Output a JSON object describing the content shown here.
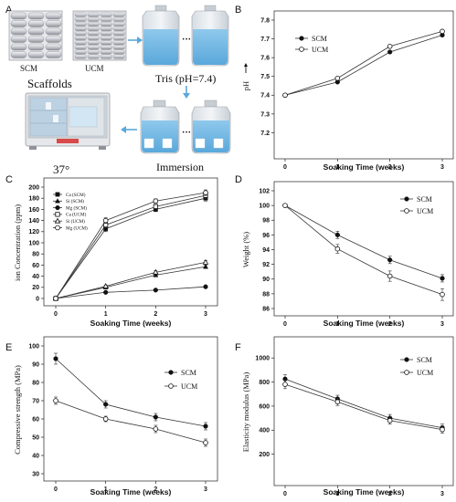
{
  "panel_a": {
    "letter": "A",
    "label_scm": "SCM",
    "label_ucm": "UCM",
    "label_scaffolds": "Scaffolds",
    "label_tris": "Tris (pH=7.4)",
    "label_immersion": "Immersion",
    "label_temp": "37°",
    "ellipsis_top": "···",
    "ellipsis_bottom": "···"
  },
  "chart_data": [
    {
      "id": "B",
      "letter": "B",
      "type": "line",
      "title": "",
      "xlabel": "Soaking Time (weeks)",
      "ylabel": "pH",
      "x": [
        0,
        1,
        2,
        3
      ],
      "xlim": [
        0,
        3
      ],
      "ylim": [
        7.1,
        7.8
      ],
      "yticks": [
        7.2,
        7.3,
        7.4,
        7.5,
        7.6,
        7.7,
        7.8
      ],
      "xticklabels": [
        "0",
        "1",
        "2",
        "3"
      ],
      "yticklabels": [
        "7.2",
        "7.3",
        "7.4",
        "7.5",
        "7.6",
        "7.7",
        "7.8"
      ],
      "legend": "top-left",
      "grid": false,
      "series": [
        {
          "name": "SCM",
          "marker": "filled-circle",
          "values": [
            7.4,
            7.47,
            7.63,
            7.72
          ],
          "errors": [
            0,
            0,
            0,
            0
          ]
        },
        {
          "name": "UCM",
          "marker": "open-circle",
          "values": [
            7.4,
            7.49,
            7.66,
            7.74
          ],
          "errors": [
            0,
            0,
            0,
            0
          ]
        }
      ]
    },
    {
      "id": "C",
      "letter": "C",
      "type": "line",
      "title": "",
      "xlabel": "Soaking Time (weeks)",
      "ylabel": "ion Concentration (ppm)",
      "x": [
        0,
        1,
        2,
        3
      ],
      "xlim": [
        0,
        3
      ],
      "ylim": [
        0,
        200
      ],
      "yticks": [
        0,
        20,
        40,
        60,
        80,
        100,
        120,
        140,
        160,
        180,
        200
      ],
      "xticklabels": [
        "0",
        "1",
        "2",
        "3"
      ],
      "yticklabels": [
        "0",
        "20",
        "40",
        "60",
        "80",
        "100",
        "120",
        "140",
        "160",
        "180",
        "200"
      ],
      "legend": "top-left",
      "grid": false,
      "series": [
        {
          "name": "Ca (SCM)",
          "marker": "filled-square",
          "values": [
            0,
            125,
            160,
            180
          ],
          "errors": [
            0,
            5,
            4,
            5
          ]
        },
        {
          "name": "Si (SCM)",
          "marker": "filled-triangle",
          "values": [
            0,
            20,
            42,
            57
          ],
          "errors": [
            0,
            2,
            3,
            3
          ]
        },
        {
          "name": "Mg (SCM)",
          "marker": "filled-circle",
          "values": [
            0,
            11,
            15,
            21
          ],
          "errors": [
            0,
            1,
            1,
            2
          ]
        },
        {
          "name": "Ca (UCM)",
          "marker": "open-square",
          "values": [
            0,
            132,
            165,
            185
          ],
          "errors": [
            0,
            5,
            4,
            5
          ]
        },
        {
          "name": "Si (UCM)",
          "marker": "open-triangle",
          "values": [
            0,
            22,
            47,
            65
          ],
          "errors": [
            0,
            2,
            3,
            3
          ]
        },
        {
          "name": "Mg (UCM)",
          "marker": "open-circle",
          "values": [
            0,
            140,
            175,
            190
          ],
          "errors": [
            0,
            5,
            4,
            5
          ]
        }
      ]
    },
    {
      "id": "D",
      "letter": "D",
      "type": "line",
      "title": "",
      "xlabel": "Soaking Time (weeks)",
      "ylabel": "Weight (%)",
      "x": [
        0,
        1,
        2,
        3
      ],
      "xlim": [
        0,
        3
      ],
      "ylim": [
        86,
        102
      ],
      "yticks": [
        86,
        88,
        90,
        92,
        94,
        96,
        98,
        100,
        102
      ],
      "xticklabels": [
        "0",
        "1",
        "2",
        "3"
      ],
      "yticklabels": [
        "86",
        "88",
        "90",
        "92",
        "94",
        "96",
        "98",
        "100",
        "102"
      ],
      "legend": "top-right",
      "grid": false,
      "series": [
        {
          "name": "SCM",
          "marker": "filled-circle",
          "values": [
            100,
            96,
            92.6,
            90.1
          ],
          "errors": [
            0,
            0.5,
            0.5,
            0.5
          ]
        },
        {
          "name": "UCM",
          "marker": "open-circle",
          "values": [
            100,
            94.1,
            90.4,
            87.9
          ],
          "errors": [
            0,
            0.6,
            0.7,
            0.8
          ]
        }
      ]
    },
    {
      "id": "E",
      "letter": "E",
      "type": "line",
      "title": "",
      "xlabel": "Soaking Time (weeks)",
      "ylabel": "Compressive strength (MPa)",
      "x": [
        0,
        1,
        2,
        3
      ],
      "xlim": [
        0,
        3
      ],
      "ylim": [
        30,
        100
      ],
      "yticks": [
        30,
        40,
        50,
        60,
        70,
        80,
        90,
        100
      ],
      "xticklabels": [
        "0",
        "1",
        "2",
        "3"
      ],
      "yticklabels": [
        "30",
        "40",
        "50",
        "60",
        "70",
        "80",
        "90",
        "100"
      ],
      "legend": "top-right",
      "grid": false,
      "series": [
        {
          "name": "SCM",
          "marker": "filled-circle",
          "values": [
            93,
            68,
            61,
            56
          ],
          "errors": [
            3,
            2,
            2,
            2
          ]
        },
        {
          "name": "UCM",
          "marker": "open-circle",
          "values": [
            70,
            60,
            54.5,
            47
          ],
          "errors": [
            2,
            1.5,
            2,
            2
          ]
        }
      ]
    },
    {
      "id": "F",
      "letter": "F",
      "type": "line",
      "title": "",
      "xlabel": "Soaking Time (weeks)",
      "ylabel": "Elasticity modulus (MPa)",
      "x": [
        0,
        1,
        2,
        3
      ],
      "xlim": [
        0,
        3
      ],
      "ylim": [
        0,
        1100
      ],
      "yticks": [
        200,
        400,
        600,
        800,
        1000
      ],
      "xticklabels": [
        "0",
        "1",
        "2",
        "3"
      ],
      "yticklabels": [
        "200",
        "400",
        "600",
        "800",
        "1000"
      ],
      "legend": "top-right",
      "grid": false,
      "series": [
        {
          "name": "SCM",
          "marker": "filled-circle",
          "values": [
            825,
            660,
            500,
            420
          ],
          "errors": [
            35,
            30,
            30,
            30
          ]
        },
        {
          "name": "UCM",
          "marker": "open-circle",
          "values": [
            780,
            635,
            480,
            405
          ],
          "errors": [
            35,
            30,
            30,
            30
          ]
        }
      ]
    }
  ]
}
